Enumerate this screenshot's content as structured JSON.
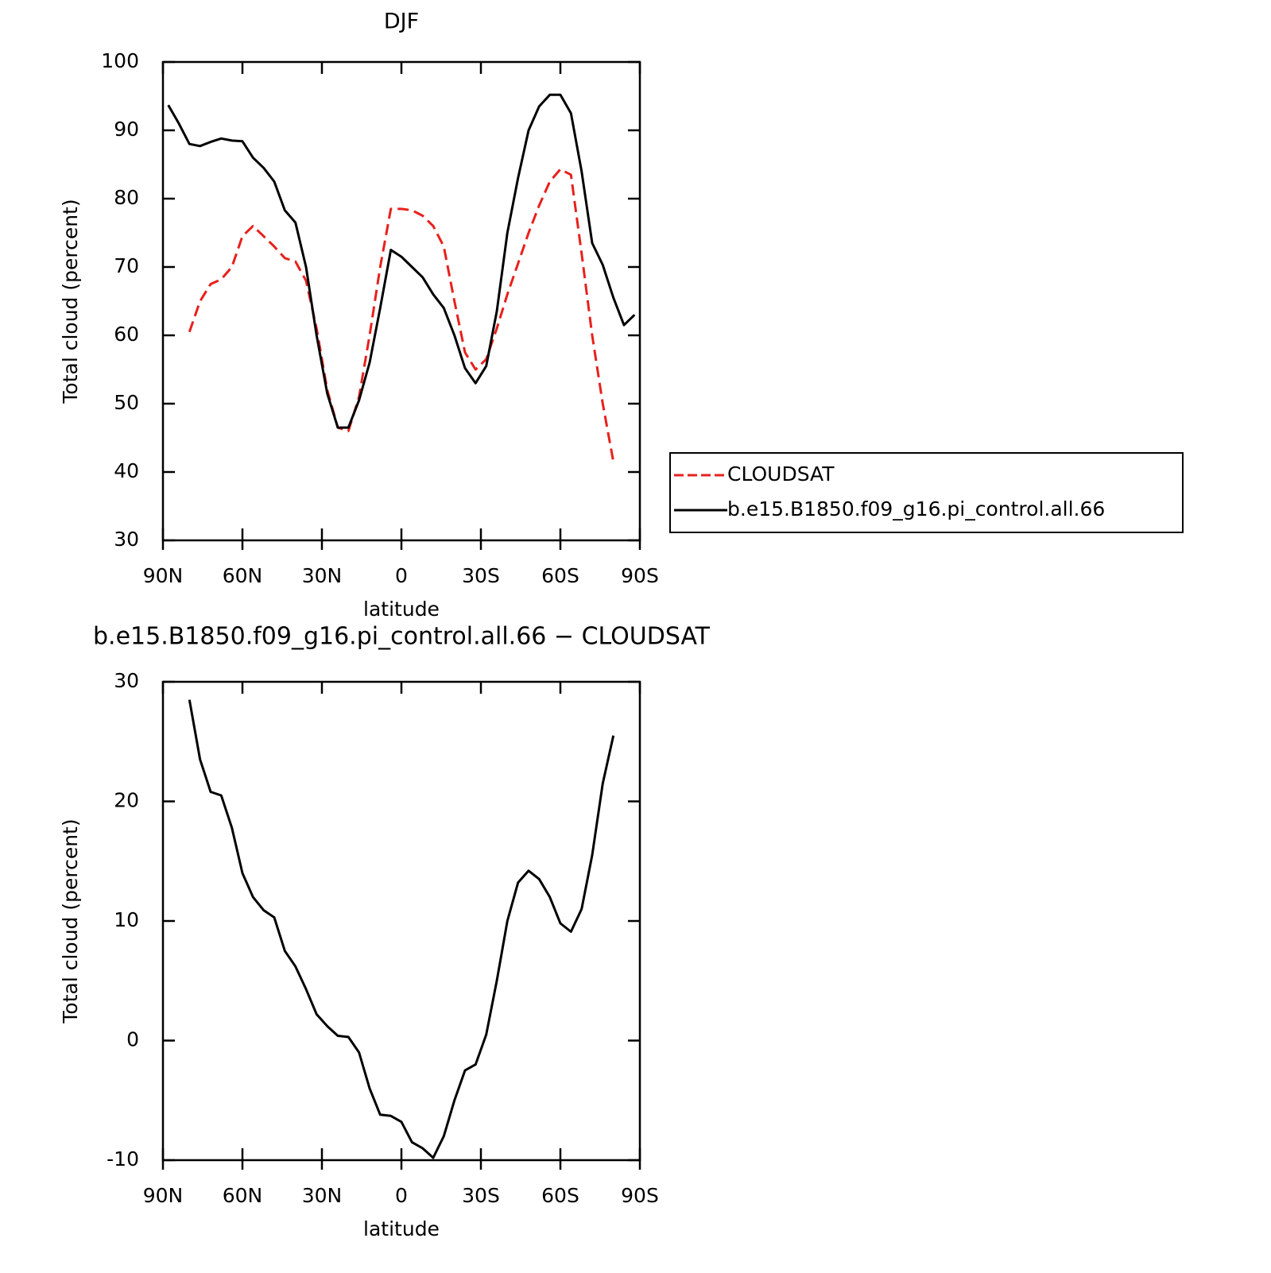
{
  "chart_data": [
    {
      "type": "line",
      "title": "DJF",
      "xlabel": "latitude",
      "ylabel": "Total cloud (percent)",
      "x": [
        88,
        84,
        80,
        76,
        72,
        68,
        64,
        60,
        56,
        52,
        48,
        44,
        40,
        36,
        32,
        28,
        24,
        20,
        16,
        12,
        8,
        4,
        0,
        -4,
        -8,
        -12,
        -16,
        -20,
        -24,
        -28,
        -32,
        -36,
        -40,
        -44,
        -48,
        -52,
        -56,
        -60,
        -64,
        -68,
        -72,
        -76,
        -80,
        -84,
        -88
      ],
      "series": [
        {
          "name": "CLOUDSAT",
          "color": "#e8201c",
          "dash": true,
          "values": [
            null,
            null,
            60.5,
            65,
            67.5,
            68.2,
            70,
            74.5,
            76,
            74.5,
            73,
            71.3,
            70.8,
            68,
            61,
            52,
            46.5,
            46,
            51,
            60,
            70,
            78.5,
            78.5,
            78.3,
            77.5,
            76,
            73,
            65,
            57.5,
            55,
            56.5,
            61,
            66,
            70.5,
            75,
            79,
            82.5,
            84.3,
            83.5,
            72,
            60,
            50,
            41.5,
            null,
            null
          ]
        },
        {
          "name": "b.e15.B1850.f09_g16.pi_control.all.66",
          "color": "#000000",
          "dash": false,
          "values": [
            93.7,
            91,
            88,
            87.7,
            88.3,
            88.8,
            88.5,
            88.4,
            86,
            84.5,
            82.5,
            78.3,
            76.5,
            70,
            60,
            51.5,
            46.5,
            46.5,
            50.5,
            56,
            64,
            72.5,
            71.5,
            70,
            68.5,
            66,
            64,
            60,
            55.2,
            53,
            55.5,
            63.5,
            75,
            83,
            90,
            93.5,
            95.2,
            95.2,
            92.5,
            84,
            73.5,
            70.3,
            65.5,
            61.5,
            63
          ]
        }
      ],
      "xlim": [
        90,
        -90
      ],
      "xticks": [
        {
          "value": 90,
          "label": "90N"
        },
        {
          "value": 60,
          "label": "60N"
        },
        {
          "value": 30,
          "label": "30N"
        },
        0,
        {
          "value": -30,
          "label": "30S"
        },
        {
          "value": -60,
          "label": "60S"
        },
        {
          "value": -90,
          "label": "90S"
        }
      ],
      "ylim": [
        30,
        100
      ],
      "yticks": [
        30,
        40,
        50,
        60,
        70,
        80,
        90,
        100
      ],
      "legend": "right"
    },
    {
      "type": "line",
      "title": "b.e15.B1850.f09_g16.pi_control.all.66 − CLOUDSAT",
      "xlabel": "latitude",
      "ylabel": "Total cloud (percent)",
      "x": [
        80,
        76,
        72,
        68,
        64,
        60,
        56,
        52,
        48,
        44,
        40,
        36,
        32,
        28,
        24,
        20,
        16,
        12,
        8,
        4,
        0,
        -4,
        -8,
        -12,
        -16,
        -20,
        -24,
        -28,
        -32,
        -36,
        -40,
        -44,
        -48,
        -52,
        -56,
        -60,
        -64,
        -68,
        -72,
        -76,
        -80
      ],
      "values": [
        28.5,
        23.5,
        20.8,
        20.5,
        17.8,
        14,
        12,
        10.9,
        10.3,
        7.5,
        6.2,
        4.3,
        2.2,
        1.2,
        0.4,
        0.3,
        -1,
        -4,
        -6.2,
        -6.3,
        -6.8,
        -8.5,
        -9,
        -9.8,
        -8,
        -5,
        -2.5,
        -2,
        0.5,
        5,
        10,
        13.2,
        14.2,
        13.5,
        12,
        9.8,
        9.1,
        11,
        15.5,
        21.5,
        25.5
      ],
      "color": "#000000",
      "xlim": [
        90,
        -90
      ],
      "xticks": [
        {
          "value": 90,
          "label": "90N"
        },
        {
          "value": 60,
          "label": "60N"
        },
        {
          "value": 30,
          "label": "30N"
        },
        0,
        {
          "value": -30,
          "label": "30S"
        },
        {
          "value": -60,
          "label": "60S"
        },
        {
          "value": -90,
          "label": "90S"
        }
      ],
      "ylim": [
        -10,
        30
      ],
      "yticks": [
        -10,
        0,
        10,
        20,
        30
      ]
    }
  ]
}
